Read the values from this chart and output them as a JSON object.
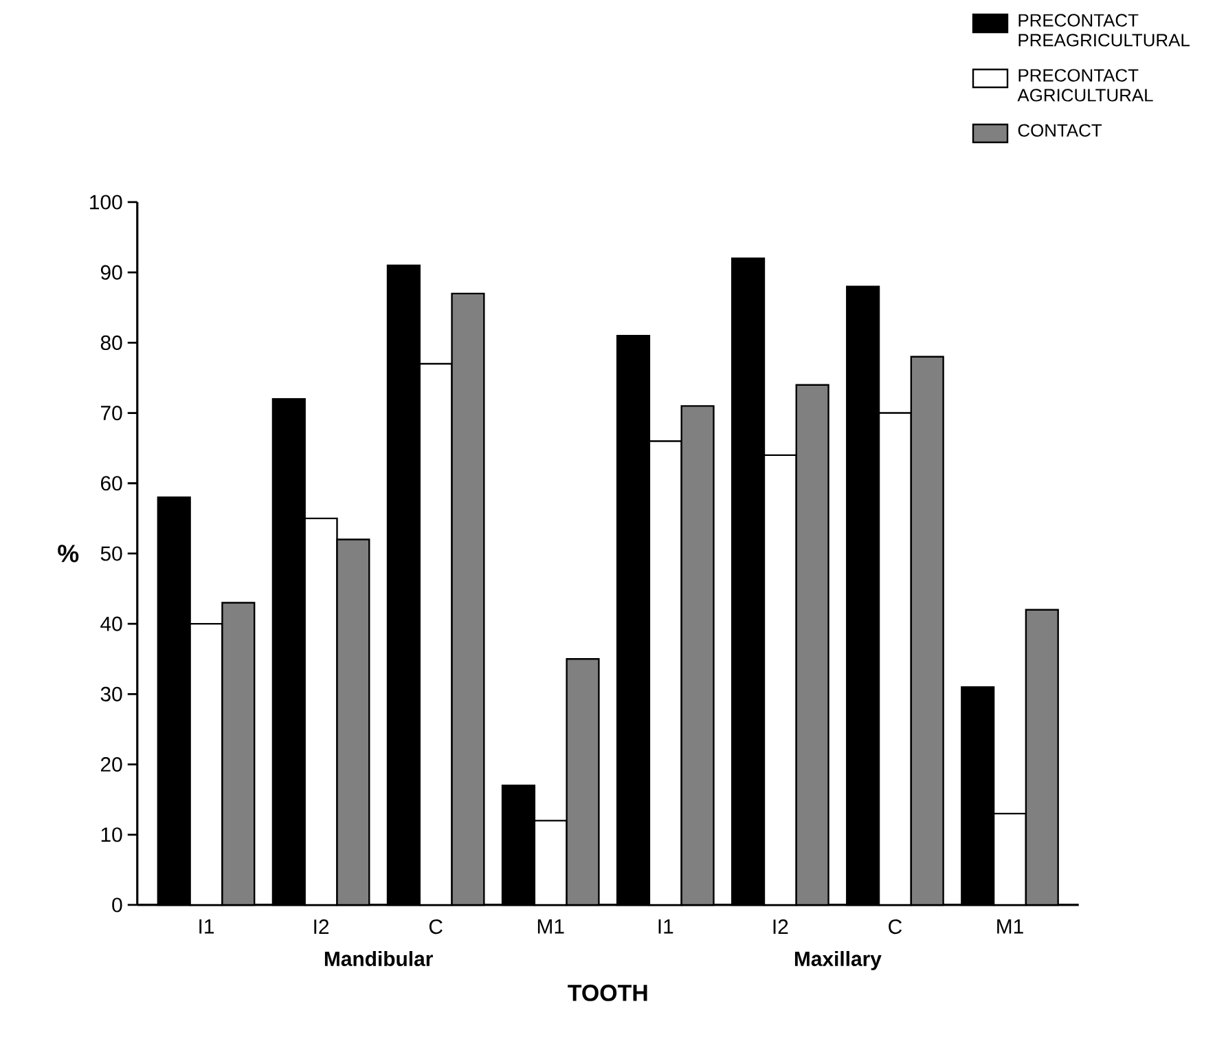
{
  "chart_data": {
    "type": "bar",
    "xlabel": "TOOTH",
    "ylabel": "%",
    "categories": [
      "I1",
      "I2",
      "C",
      "M1",
      "I1",
      "I2",
      "C",
      "M1"
    ],
    "series": [
      {
        "name": "PRECONTACT PREAGRICULTURAL",
        "color": "#000000",
        "values": [
          58,
          72,
          91,
          17,
          81,
          92,
          88,
          31
        ]
      },
      {
        "name": "PRECONTACT AGRICULTURAL",
        "color": "#ffffff",
        "values": [
          40,
          55,
          77,
          12,
          66,
          64,
          70,
          13
        ]
      },
      {
        "name": "CONTACT",
        "color": "#808080",
        "values": [
          43,
          52,
          87,
          35,
          71,
          74,
          78,
          42
        ]
      }
    ],
    "ylim": [
      0,
      100
    ],
    "yticks": [
      0,
      10,
      20,
      30,
      40,
      50,
      60,
      70,
      80,
      90,
      100
    ],
    "annotations": [
      "Mandibular",
      "Maxillary"
    ],
    "legend": "top right",
    "grid": false
  }
}
